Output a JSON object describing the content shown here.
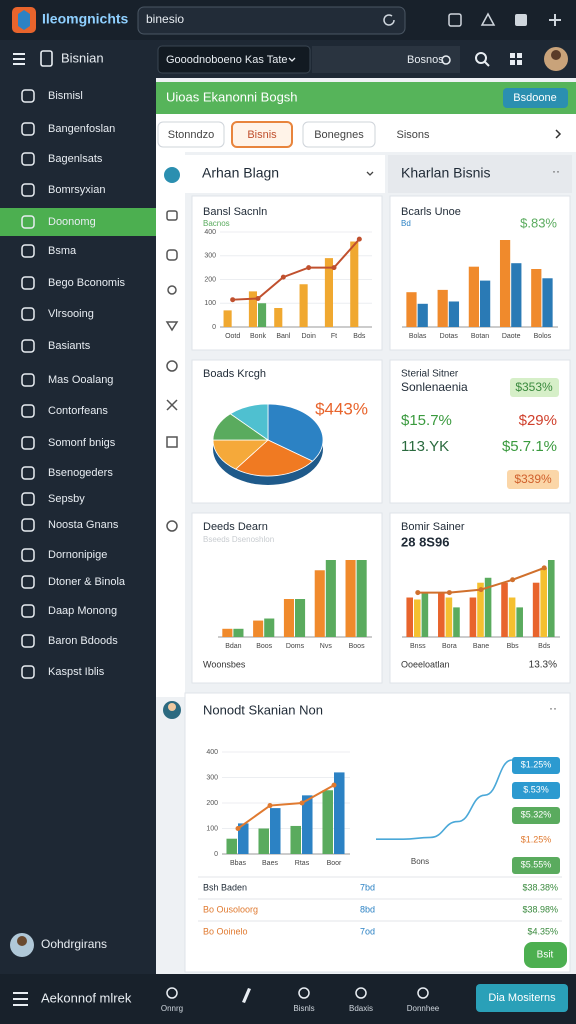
{
  "app": {
    "logo": "Ileomgnichts",
    "search": "binesio"
  },
  "toolbar": {
    "menu_title": "Bisnian",
    "dropdown": "Gooodnoboeno Kas Tate",
    "settings": "Bosnos"
  },
  "sidebar": {
    "items": [
      "Bismisl",
      "Bangenfoslan",
      "Bagenlsats",
      "Bomrsyxian",
      "Doonomg",
      "Bsma",
      "Bego Bconomis",
      "Vlrsooing",
      "Basiants",
      "Mas Ooalang",
      "Contorfeans",
      "Somonf bnigs",
      "Bsenogeders",
      "Sepsby",
      "Noosta Gnans",
      "Dornonipige",
      "Dtoner & Binola",
      "Daap Monong",
      "Baron Bdoods",
      "Kaspst Iblis"
    ],
    "active": 4,
    "user": "Oohdrgirans"
  },
  "header": {
    "title": "Uioas Ekanonni Bogsh",
    "button": "Bsdoone"
  },
  "tabs": {
    "items": [
      "Stonndzo",
      "Bisnis",
      "Bonegnes",
      "Sisons"
    ],
    "active": 1
  },
  "panels": {
    "left_title": "Arhan Blagn",
    "right_title": "Kharlan Bisnis"
  },
  "cards": {
    "sales": {
      "title": "Bansl Sacnln",
      "subtitle": "Bacnos",
      "ylim": [
        0,
        400
      ],
      "yticks": [
        0,
        100,
        200,
        300,
        400
      ],
      "categories": [
        "Ootd",
        "Bonk",
        "Banl",
        "Doin",
        "Ft",
        "Bds"
      ],
      "series": [
        {
          "color": "#f0a830",
          "values": [
            70,
            150,
            80,
            180,
            290,
            360
          ]
        },
        {
          "color": "#5aab5e",
          "values": [
            0,
            100,
            0,
            0,
            0,
            0
          ]
        }
      ],
      "line": {
        "color": "#c0502e",
        "values": [
          115,
          120,
          210,
          250,
          250,
          370
        ]
      }
    },
    "growth": {
      "title": "Bcarls Unoe",
      "subtitle": "Bd",
      "kpi": "$.83%",
      "categories": [
        "Bolas",
        "Dotas",
        "Botan",
        "Daote",
        "Bolos"
      ],
      "series": [
        {
          "color": "#f08a2c",
          "values": [
            30,
            32,
            52,
            75,
            50
          ]
        },
        {
          "color": "#2a7ab5",
          "values": [
            20,
            22,
            40,
            55,
            42
          ]
        }
      ]
    },
    "share": {
      "title": "Boads Krcgh",
      "label": "$443%",
      "values": [
        35,
        25,
        15,
        13,
        12
      ],
      "colors": [
        "#2c82c4",
        "#f07a22",
        "#f5a93a",
        "#5aab5e",
        "#4fc0d0"
      ]
    },
    "stats": {
      "title": "Sterial Sitner",
      "subtitle": "Sonlenaenia",
      "badge_top": "$353%",
      "left_1": "$15.7%",
      "right_1": "$29%",
      "left_2": "113.YK",
      "right_2": "$5.7.1%",
      "badge_bottom": "$339%"
    },
    "trend": {
      "title": "Deeds Dearn",
      "subtitle": "Bseeds Dsenoshlon",
      "footer": "Woonsbes",
      "categories": [
        "Bdan",
        "Boos",
        "Doms",
        "Nvs",
        "Boos"
      ],
      "series": [
        {
          "color": "#f08a2c",
          "values": [
            8,
            16,
            37,
            65,
            75
          ]
        },
        {
          "color": "#5aab5e",
          "values": [
            8,
            18,
            37,
            75,
            75
          ]
        }
      ]
    },
    "mix": {
      "title": "Bomir Sainer",
      "value": "28 8S96",
      "footer_left": "Ooeeloatlan",
      "footer_right": "13.3%",
      "categories": [
        "Bnss",
        "Bora",
        "Bane",
        "Bbs",
        "Bds"
      ],
      "series": [
        {
          "color": "#e8642c",
          "values": [
            40,
            45,
            40,
            55,
            55
          ]
        },
        {
          "color": "#f5c030",
          "values": [
            38,
            40,
            55,
            40,
            70
          ]
        },
        {
          "color": "#5aab5e",
          "values": [
            45,
            30,
            60,
            30,
            78
          ]
        }
      ],
      "line": {
        "color": "#d0702c",
        "values": [
          45,
          45,
          48,
          58,
          70
        ]
      }
    }
  },
  "bottom": {
    "title": "Nonodt Skanian Non",
    "chart": {
      "ylim": [
        0,
        400
      ],
      "yticks": [
        0,
        100,
        200,
        300,
        400
      ],
      "categories": [
        "Bbas",
        "Baes",
        "Rtas",
        "Boor"
      ],
      "series": [
        {
          "color": "#5aab5e",
          "values": [
            60,
            100,
            110,
            250
          ]
        },
        {
          "color": "#2c82c4",
          "values": [
            120,
            180,
            230,
            320
          ]
        }
      ],
      "line": {
        "color": "#e07a30",
        "values": [
          100,
          190,
          200,
          270
        ]
      }
    },
    "trend": {
      "label": "Bons",
      "color": "#4aa8d8",
      "values": [
        10,
        10,
        12,
        30,
        60,
        100
      ]
    },
    "badges": [
      "$1.25%",
      "$.53%",
      "$5.32%",
      "$1.25%",
      "$5.55%"
    ],
    "rows": [
      [
        "Bsh Baden",
        "7bd",
        "$38.38%"
      ],
      [
        "Bo Ousoloorg",
        "8bd",
        "$38.98%"
      ],
      [
        "Bo Ooinelo",
        "7od",
        "$4.35%"
      ]
    ],
    "button": "Bsit"
  },
  "bottombar": {
    "title": "Aekonnof mlrek",
    "items": [
      "Onnrg",
      "Bisnls",
      "Bdaxis",
      "Donnhee"
    ],
    "button": "Dia Mositerns"
  }
}
